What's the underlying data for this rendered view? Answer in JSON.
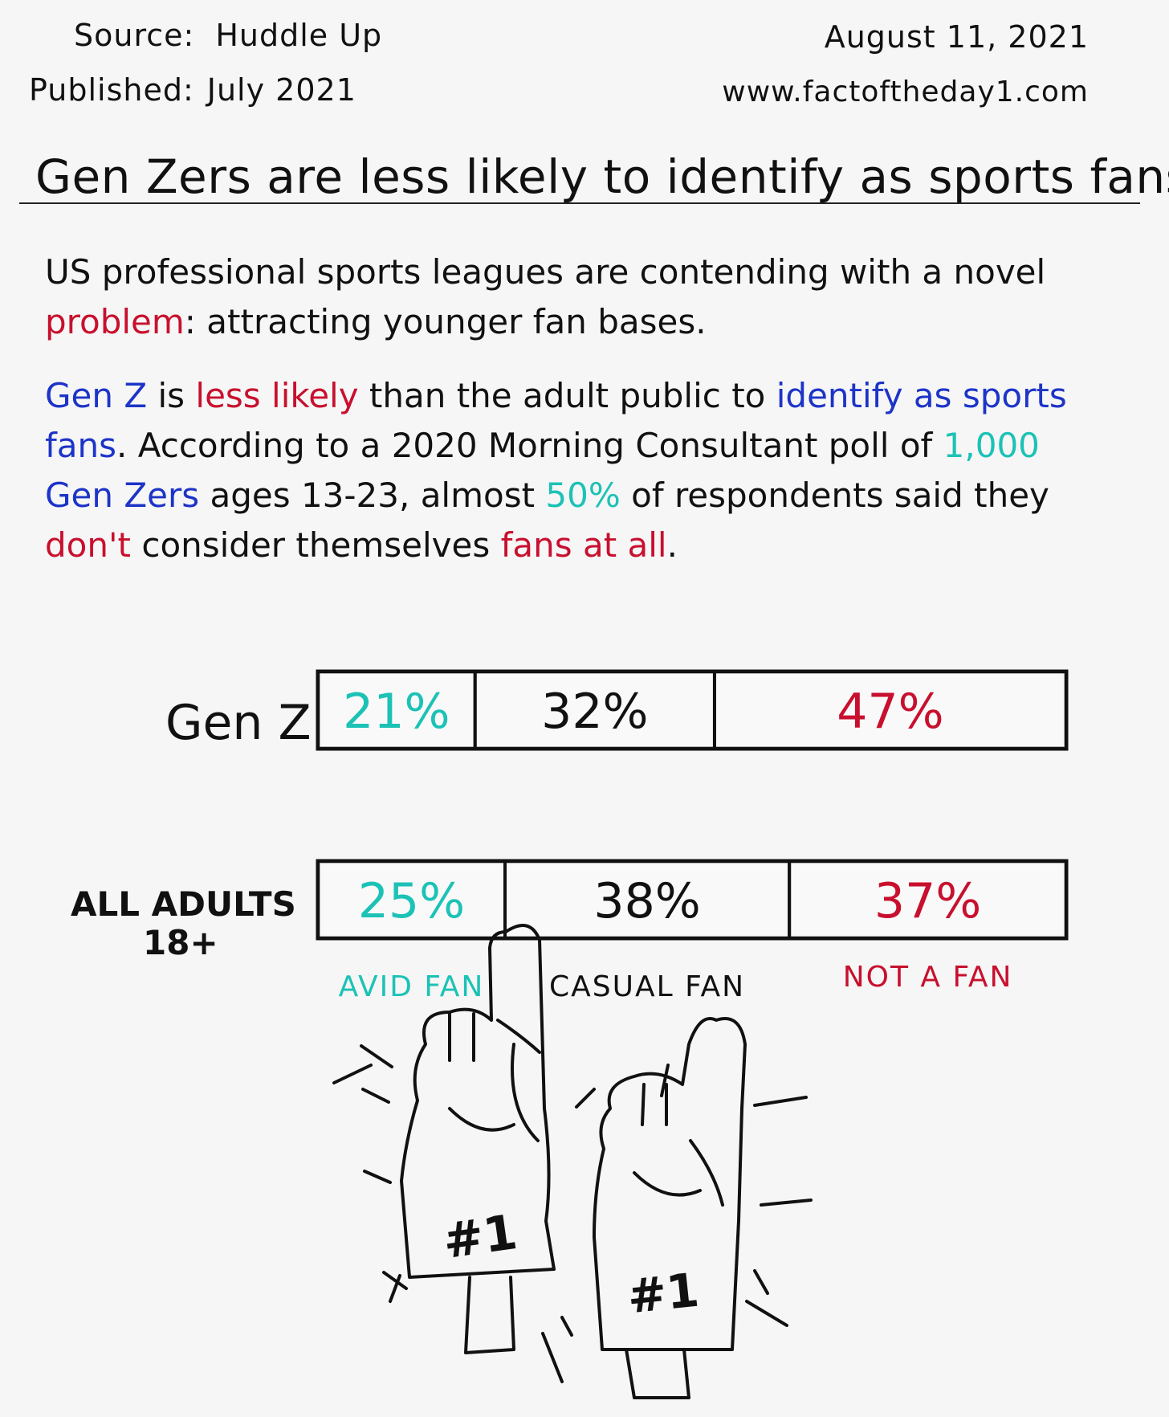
{
  "header": {
    "source_label": "Source:",
    "source_value": "Huddle Up",
    "published_label": "Published:",
    "published_value": "July 2021",
    "date": "August 11, 2021",
    "website": "www.factoftheday1.com"
  },
  "title": "Gen Zers are less likely to identify as sports fans",
  "paragraph1": {
    "part1": "US professional sports leagues are contending with a novel ",
    "highlight": "problem",
    "part2": ": attracting younger fan bases."
  },
  "paragraph2": {
    "s1": "Gen Z",
    "s2": " is ",
    "s3": "less likely",
    "s4": " than the adult public to ",
    "s5": "identify as sports fans",
    "s6": ". According to a 2020 Morning Consultant poll of ",
    "s7": "1,000",
    "s8": " ",
    "s9": "Gen Zers",
    "s10": " ages 13-23, almost ",
    "s11": "50%",
    "s12": " of respondents said they ",
    "s13": "don't",
    "s14": " consider themselves ",
    "s15": "fans at all",
    "s16": "."
  },
  "colors": {
    "avid": "#1cc2b6",
    "casual": "#111111",
    "not_fan": "#c8102e",
    "highlight_blue": "#1d34c8"
  },
  "illustration": {
    "icon": "foam-finger-icon",
    "glove_text": "#1"
  },
  "chart_data": {
    "type": "bar",
    "orientation": "horizontal",
    "stacked": true,
    "categories": [
      "Gen Z",
      "ALL ADULTS 18+"
    ],
    "series": [
      {
        "name": "AVID FAN",
        "values": [
          21,
          25
        ],
        "labels": [
          "21%",
          "25%"
        ],
        "color": "#1cc2b6"
      },
      {
        "name": "CASUAL FAN",
        "values": [
          32,
          38
        ],
        "labels": [
          "32%",
          "38%"
        ],
        "color": "#111111"
      },
      {
        "name": "NOT A FAN",
        "values": [
          47,
          37
        ],
        "labels": [
          "47%",
          "37%"
        ],
        "color": "#c8102e"
      }
    ],
    "xlim": [
      0,
      100
    ],
    "title": "",
    "xlabel": "",
    "ylabel": "",
    "grid": false,
    "legend": "below"
  }
}
